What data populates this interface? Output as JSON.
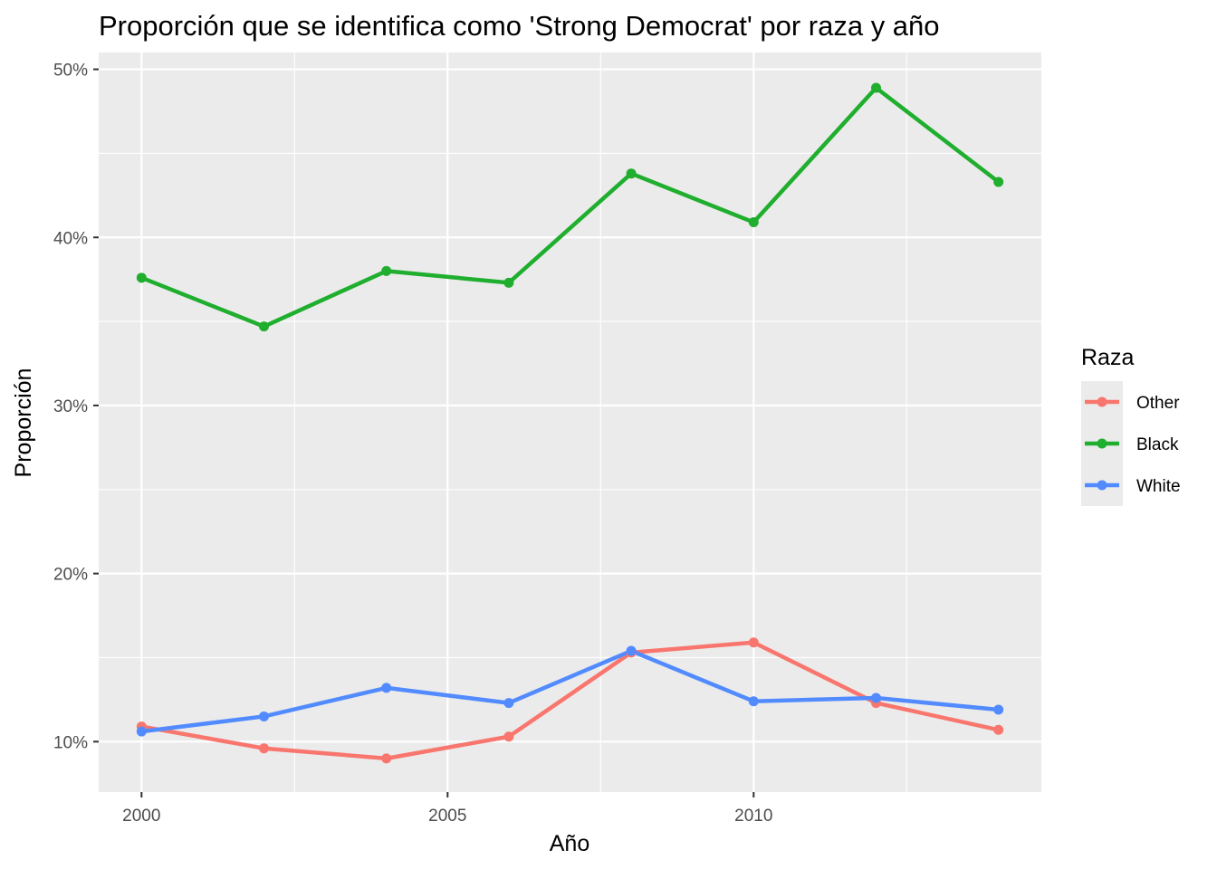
{
  "chart_data": {
    "type": "line",
    "title": "Proporción que se identifica como 'Strong Democrat' por raza y año",
    "xlabel": "Año",
    "ylabel": "Proporción",
    "x": [
      2000,
      2002,
      2004,
      2006,
      2008,
      2010,
      2012,
      2014
    ],
    "xlim": [
      1999.3,
      2014.7
    ],
    "ylim": [
      0.07,
      0.51
    ],
    "x_ticks": [
      2000,
      2005,
      2010
    ],
    "x_tick_labels": [
      "2000",
      "2005",
      "2010"
    ],
    "y_ticks": [
      0.1,
      0.2,
      0.3,
      0.4,
      0.5
    ],
    "y_tick_labels": [
      "10%",
      "20%",
      "30%",
      "40%",
      "50%"
    ],
    "grid": true,
    "legend_title": "Raza",
    "legend_position": "right",
    "series": [
      {
        "name": "Other",
        "color": "#F8766D",
        "values": [
          0.109,
          0.096,
          0.09,
          0.103,
          0.153,
          0.159,
          0.123,
          0.107
        ]
      },
      {
        "name": "Black",
        "color": "#1FAE2E",
        "values": [
          0.376,
          0.347,
          0.38,
          0.373,
          0.438,
          0.409,
          0.489,
          0.433
        ]
      },
      {
        "name": "White",
        "color": "#528BFF",
        "values": [
          0.106,
          0.115,
          0.132,
          0.123,
          0.154,
          0.124,
          0.126,
          0.119
        ]
      }
    ]
  }
}
